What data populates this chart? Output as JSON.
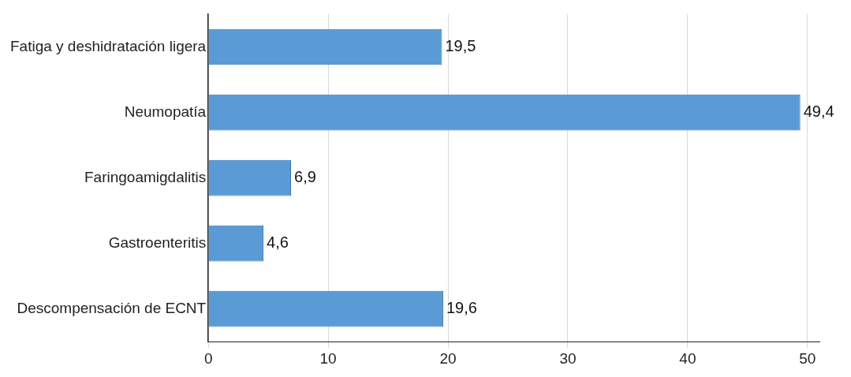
{
  "chart_data": {
    "type": "bar",
    "orientation": "horizontal",
    "categories": [
      "Fatiga y deshidratación ligera",
      "Neumopatía",
      "Faringoamigdalitis",
      "Gastroenteritis",
      "Descompensación de ECNT"
    ],
    "values": [
      19.5,
      49.4,
      6.9,
      4.6,
      19.6
    ],
    "value_labels": [
      "19,5",
      "49,4",
      "6,9",
      "4,6",
      "19,6"
    ],
    "color": "#5b9bd5",
    "xlim": [
      0,
      51
    ],
    "xticks": [
      0,
      10,
      20,
      30,
      40,
      50
    ],
    "grid": "x"
  }
}
